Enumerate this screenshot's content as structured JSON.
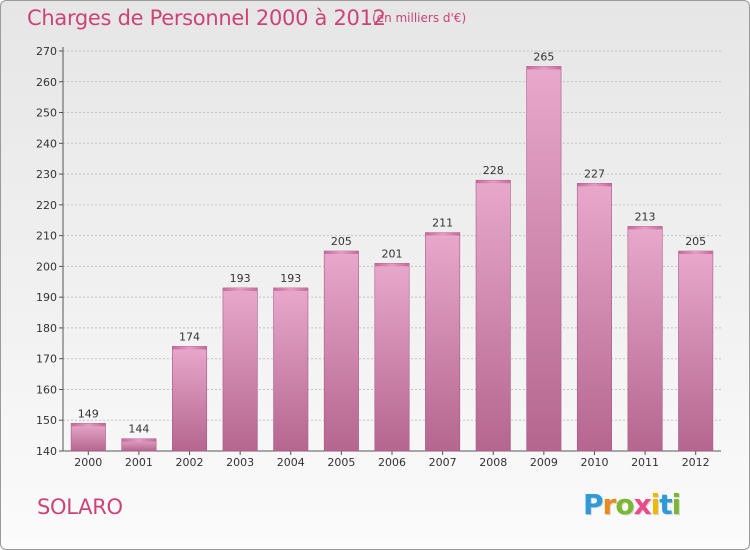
{
  "chart_data": {
    "type": "bar",
    "title": "Charges de Personnel 2000 à 2012",
    "subtitle": "(en milliers d'€)",
    "categories": [
      "2000",
      "2001",
      "2002",
      "2003",
      "2004",
      "2005",
      "2006",
      "2007",
      "2008",
      "2009",
      "2010",
      "2011",
      "2012"
    ],
    "values": [
      149,
      144,
      174,
      193,
      193,
      205,
      201,
      211,
      228,
      265,
      227,
      213,
      205
    ],
    "ylim": [
      140,
      270
    ],
    "yticks": [
      140,
      150,
      160,
      170,
      180,
      190,
      200,
      210,
      220,
      230,
      240,
      250,
      260,
      270
    ],
    "grid": true,
    "bar_color": "#cc7aa8"
  },
  "footer": {
    "commune": "SOLARO",
    "brand": "Proxiti",
    "brand_letters": [
      {
        "ch": "P",
        "color": "#2e9ad6"
      },
      {
        "ch": "r",
        "color": "#e98a1f"
      },
      {
        "ch": "o",
        "color": "#7ab833"
      },
      {
        "ch": "x",
        "color": "#e84c8a"
      },
      {
        "ch": "i",
        "color": "#f0b800"
      },
      {
        "ch": "t",
        "color": "#2e9ad6"
      },
      {
        "ch": "i",
        "color": "#7ab833"
      }
    ]
  }
}
